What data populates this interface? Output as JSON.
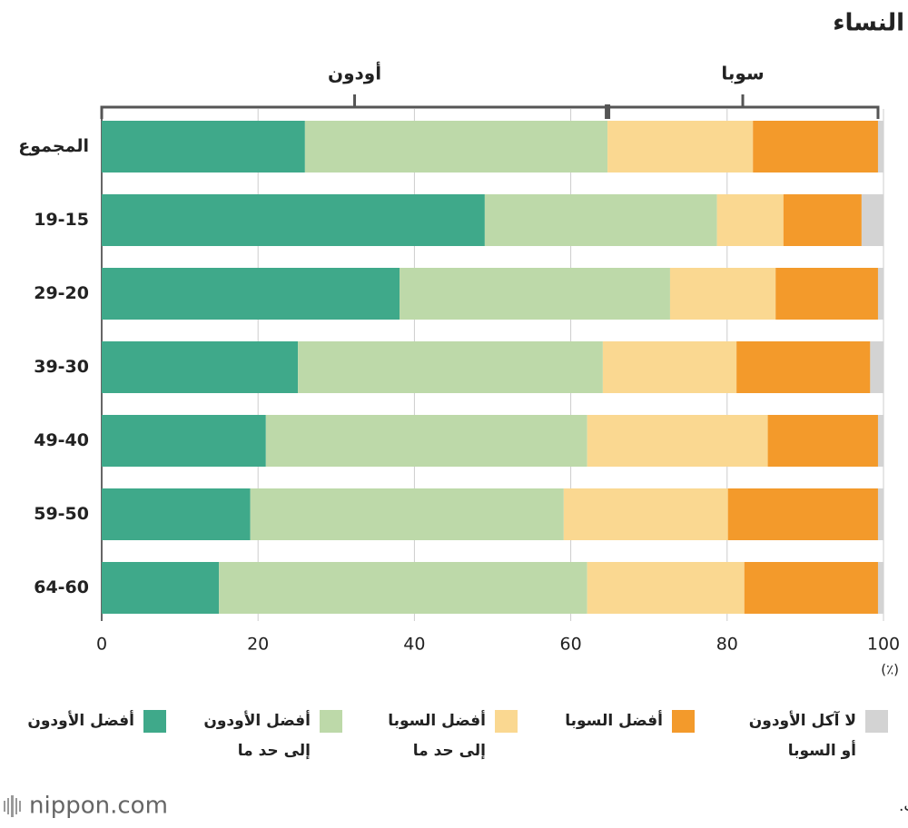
{
  "chart_data": {
    "type": "stacked-barh",
    "title": "النساء",
    "annotations": [
      "أودون",
      "سوبا"
    ],
    "categories": [
      "المجموع",
      "19-15",
      "29-20",
      "39-30",
      "49-40",
      "59-50",
      "64-60"
    ],
    "series": [
      {
        "name": "أفضل الأودون",
        "color": "#3fa98a",
        "values": [
          26,
          49,
          38.1,
          25.1,
          21,
          19,
          15
        ]
      },
      {
        "name": "أفضل الأودون\nإلى حد ما",
        "color": "#bdd9a9",
        "values": [
          38.7,
          29.7,
          34.6,
          39,
          41.1,
          40.1,
          47.1
        ]
      },
      {
        "name": "أفضل السوبا\nإلى حد ما",
        "color": "#fad891",
        "values": [
          18.6,
          8.5,
          13.5,
          17.1,
          23.1,
          21,
          20.1
        ]
      },
      {
        "name": "أفضل السوبا",
        "color": "#f39a2b",
        "values": [
          16,
          10,
          13.1,
          17.1,
          14.1,
          19.2,
          17.1
        ]
      },
      {
        "name": "لا آكل الأودون\nأو السوبا",
        "color": "#d3d3d3",
        "values": [
          0.7,
          2.8,
          0.7,
          1.7,
          0.7,
          0.7,
          0.7
        ]
      }
    ],
    "xlim": [
      0,
      100
    ],
    "xticks": [
      0,
      20,
      40,
      60,
      80,
      100
    ],
    "x_unit": "(٪)",
    "grid": true,
    "source": "تم إعداد البيانات بواسطة Nippon.com بناء على بيانات لاين للأبحاث.",
    "logo": "nippon.com"
  }
}
